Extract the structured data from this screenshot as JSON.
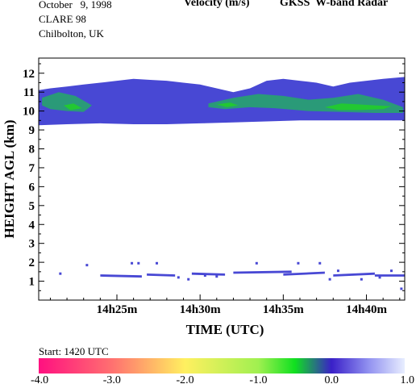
{
  "header": {
    "date": "October   9, 1998",
    "campaign": "CLARE 98",
    "location": "Chilbolton, UK",
    "quantity": "Velocity (m/s)",
    "instrument": "GKSS  W-band Radar"
  },
  "start_label": "Start: 1420 UTC",
  "colors": {
    "cloud_base": "#4848d4",
    "cloud_mid": "#2a9a78",
    "cloud_core": "#22c832",
    "axis": "#000000"
  },
  "chart_data": {
    "type": "heatmap",
    "title": "Velocity (m/s)",
    "xlabel": "TIME (UTC)",
    "ylabel": "HEIGHT AGL (km)",
    "x_unit": "minutes after 14:20 UTC",
    "xlim": [
      20.3,
      42.3
    ],
    "ylim": [
      0,
      12.8
    ],
    "x_ticks": [
      {
        "t": 25,
        "label": "14h25m"
      },
      {
        "t": 30,
        "label": "14h30m"
      },
      {
        "t": 35,
        "label": "14h35m"
      },
      {
        "t": 40,
        "label": "14h40m"
      }
    ],
    "y_ticks": [
      1,
      2,
      3,
      4,
      5,
      6,
      7,
      8,
      9,
      10,
      11,
      12
    ],
    "colorbar": {
      "min": -4.0,
      "max": 1.0,
      "ticks": [
        "-4.0",
        "-3.0",
        "-2.0",
        "-1.0",
        "0.0",
        "1.0"
      ],
      "stops": [
        {
          "v": -4.0,
          "c": "#ff1080"
        },
        {
          "v": -3.0,
          "c": "#ff7070"
        },
        {
          "v": -2.0,
          "c": "#fff060"
        },
        {
          "v": -1.0,
          "c": "#a0f050"
        },
        {
          "v": -0.5,
          "c": "#10e020"
        },
        {
          "v": 0.0,
          "c": "#3a20c8"
        },
        {
          "v": 0.5,
          "c": "#9090f0"
        },
        {
          "v": 1.0,
          "c": "#e8eeff"
        }
      ]
    },
    "upper_cloud": {
      "top": [
        [
          20.3,
          11.1
        ],
        [
          21.0,
          11.2
        ],
        [
          22.0,
          11.3
        ],
        [
          23.0,
          11.4
        ],
        [
          24.0,
          11.5
        ],
        [
          25.0,
          11.6
        ],
        [
          26.0,
          11.7
        ],
        [
          27.0,
          11.65
        ],
        [
          28.0,
          11.6
        ],
        [
          29.0,
          11.5
        ],
        [
          30.0,
          11.4
        ],
        [
          31.0,
          11.2
        ],
        [
          32.0,
          11.0
        ],
        [
          33.0,
          11.2
        ],
        [
          34.0,
          11.6
        ],
        [
          35.0,
          11.7
        ],
        [
          36.0,
          11.6
        ],
        [
          37.0,
          11.5
        ],
        [
          38.0,
          11.3
        ],
        [
          39.0,
          11.5
        ],
        [
          40.0,
          11.6
        ],
        [
          41.0,
          11.7
        ],
        [
          42.3,
          11.8
        ]
      ],
      "base": [
        [
          20.3,
          9.25
        ],
        [
          22.0,
          9.3
        ],
        [
          24.0,
          9.35
        ],
        [
          26.0,
          9.3
        ],
        [
          28.0,
          9.3
        ],
        [
          30.0,
          9.35
        ],
        [
          32.0,
          9.4
        ],
        [
          34.0,
          9.45
        ],
        [
          36.0,
          9.5
        ],
        [
          38.0,
          9.5
        ],
        [
          40.0,
          9.5
        ],
        [
          42.3,
          9.5
        ]
      ]
    },
    "mid_regions": [
      [
        [
          20.5,
          10.7
        ],
        [
          21.5,
          11.0
        ],
        [
          22.5,
          10.8
        ],
        [
          23.5,
          10.3
        ],
        [
          23.0,
          9.95
        ],
        [
          22.0,
          10.0
        ],
        [
          21.0,
          10.1
        ],
        [
          20.5,
          10.3
        ]
      ],
      [
        [
          30.5,
          10.4
        ],
        [
          32.0,
          10.7
        ],
        [
          33.5,
          10.9
        ],
        [
          35.0,
          10.8
        ],
        [
          36.5,
          10.6
        ],
        [
          38.0,
          10.7
        ],
        [
          39.5,
          10.9
        ],
        [
          41.0,
          10.6
        ],
        [
          42.2,
          10.2
        ],
        [
          42.2,
          9.9
        ],
        [
          40.5,
          9.9
        ],
        [
          38.5,
          9.95
        ],
        [
          36.5,
          10.0
        ],
        [
          34.5,
          10.15
        ],
        [
          33.0,
          10.2
        ],
        [
          31.5,
          10.1
        ],
        [
          30.5,
          10.2
        ]
      ]
    ],
    "core_regions": [
      [
        [
          21.8,
          10.3
        ],
        [
          22.4,
          10.4
        ],
        [
          22.9,
          10.15
        ],
        [
          22.2,
          10.05
        ]
      ],
      [
        [
          31.0,
          10.35
        ],
        [
          31.8,
          10.45
        ],
        [
          32.3,
          10.3
        ],
        [
          31.6,
          10.2
        ]
      ],
      [
        [
          37.5,
          10.2
        ],
        [
          38.5,
          10.4
        ],
        [
          39.5,
          10.35
        ],
        [
          40.5,
          10.3
        ],
        [
          41.5,
          10.25
        ],
        [
          41.0,
          10.1
        ],
        [
          39.5,
          10.05
        ],
        [
          38.3,
          10.05
        ]
      ]
    ],
    "low_layer": [
      [
        24.0,
        26.5,
        1.3,
        1.25
      ],
      [
        26.8,
        28.5,
        1.35,
        1.3
      ],
      [
        29.5,
        31.5,
        1.4,
        1.35
      ],
      [
        32.0,
        35.5,
        1.45,
        1.5
      ],
      [
        35.0,
        37.5,
        1.35,
        1.45
      ],
      [
        38.0,
        40.5,
        1.3,
        1.4
      ],
      [
        40.5,
        42.3,
        1.3,
        1.3
      ]
    ],
    "speckles": [
      [
        21.6,
        1.4
      ],
      [
        23.2,
        1.85
      ],
      [
        25.9,
        1.95
      ],
      [
        26.3,
        1.95
      ],
      [
        27.4,
        1.95
      ],
      [
        28.7,
        1.2
      ],
      [
        29.3,
        1.1
      ],
      [
        30.3,
        1.3
      ],
      [
        31.0,
        1.25
      ],
      [
        33.4,
        1.95
      ],
      [
        35.9,
        1.95
      ],
      [
        37.2,
        1.95
      ],
      [
        37.8,
        1.1
      ],
      [
        38.3,
        1.55
      ],
      [
        39.7,
        1.1
      ],
      [
        40.8,
        1.2
      ],
      [
        41.5,
        1.55
      ],
      [
        42.1,
        0.6
      ]
    ]
  }
}
